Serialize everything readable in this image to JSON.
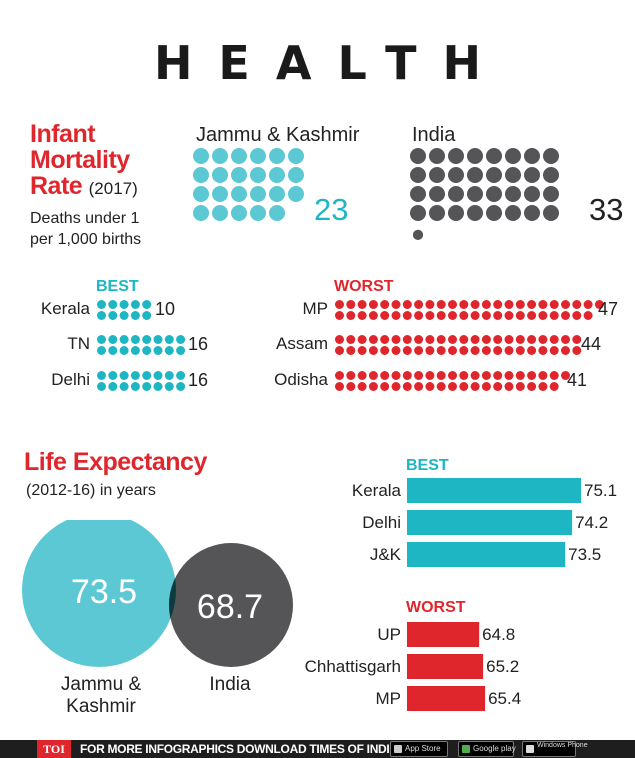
{
  "title": "HEALTH",
  "imr": {
    "title_lines": [
      "Infant",
      "Mortality",
      "Rate"
    ],
    "year": "(2017)",
    "desc_line1": "Deaths under 1",
    "desc_line2": "per 1,000 births",
    "regions": [
      {
        "name": "Jammu & Kashmir",
        "value": 23,
        "color": "#5cc8d4"
      },
      {
        "name": "India",
        "value": 33,
        "color": "#555558"
      }
    ],
    "best_label": "BEST",
    "worst_label": "WORST",
    "best": [
      {
        "name": "Kerala",
        "value": 10
      },
      {
        "name": "TN",
        "value": 16
      },
      {
        "name": "Delhi",
        "value": 16
      }
    ],
    "worst": [
      {
        "name": "MP",
        "value": 47
      },
      {
        "name": "Assam",
        "value": 44
      },
      {
        "name": "Odisha",
        "value": 41
      }
    ],
    "best_color": "#1fb6c4",
    "worst_color": "#e0262d"
  },
  "life": {
    "title": "Life Expectancy",
    "subtitle": "(2012-16) in years",
    "venn": [
      {
        "name_line1": "Jammu &",
        "name_line2": "Kashmir",
        "value": "73.5",
        "color": "#5cc8d4"
      },
      {
        "name_line1": "India",
        "name_line2": "",
        "value": "68.7",
        "color": "#555558"
      }
    ],
    "overlap_color": "#0d3a3d",
    "best_label": "BEST",
    "worst_label": "WORST",
    "best_color": "#1fb6c4",
    "worst_color": "#e0262d"
  },
  "chart_data": [
    {
      "type": "bar",
      "title": "Life Expectancy BEST",
      "categories": [
        "Kerala",
        "Delhi",
        "J&K"
      ],
      "values": [
        75.1,
        74.2,
        73.5
      ]
    },
    {
      "type": "bar",
      "title": "Life Expectancy WORST",
      "categories": [
        "UP",
        "Chhattisgarh",
        "MP"
      ],
      "values": [
        64.8,
        65.2,
        65.4
      ]
    }
  ],
  "footer": {
    "toi": "TOI",
    "text": "FOR MORE  INFOGRAPHICS DOWNLOAD TIMES OF INDIA APP",
    "app_store": "App Store",
    "google_play": "Google play",
    "windows": "Windows Phone"
  }
}
